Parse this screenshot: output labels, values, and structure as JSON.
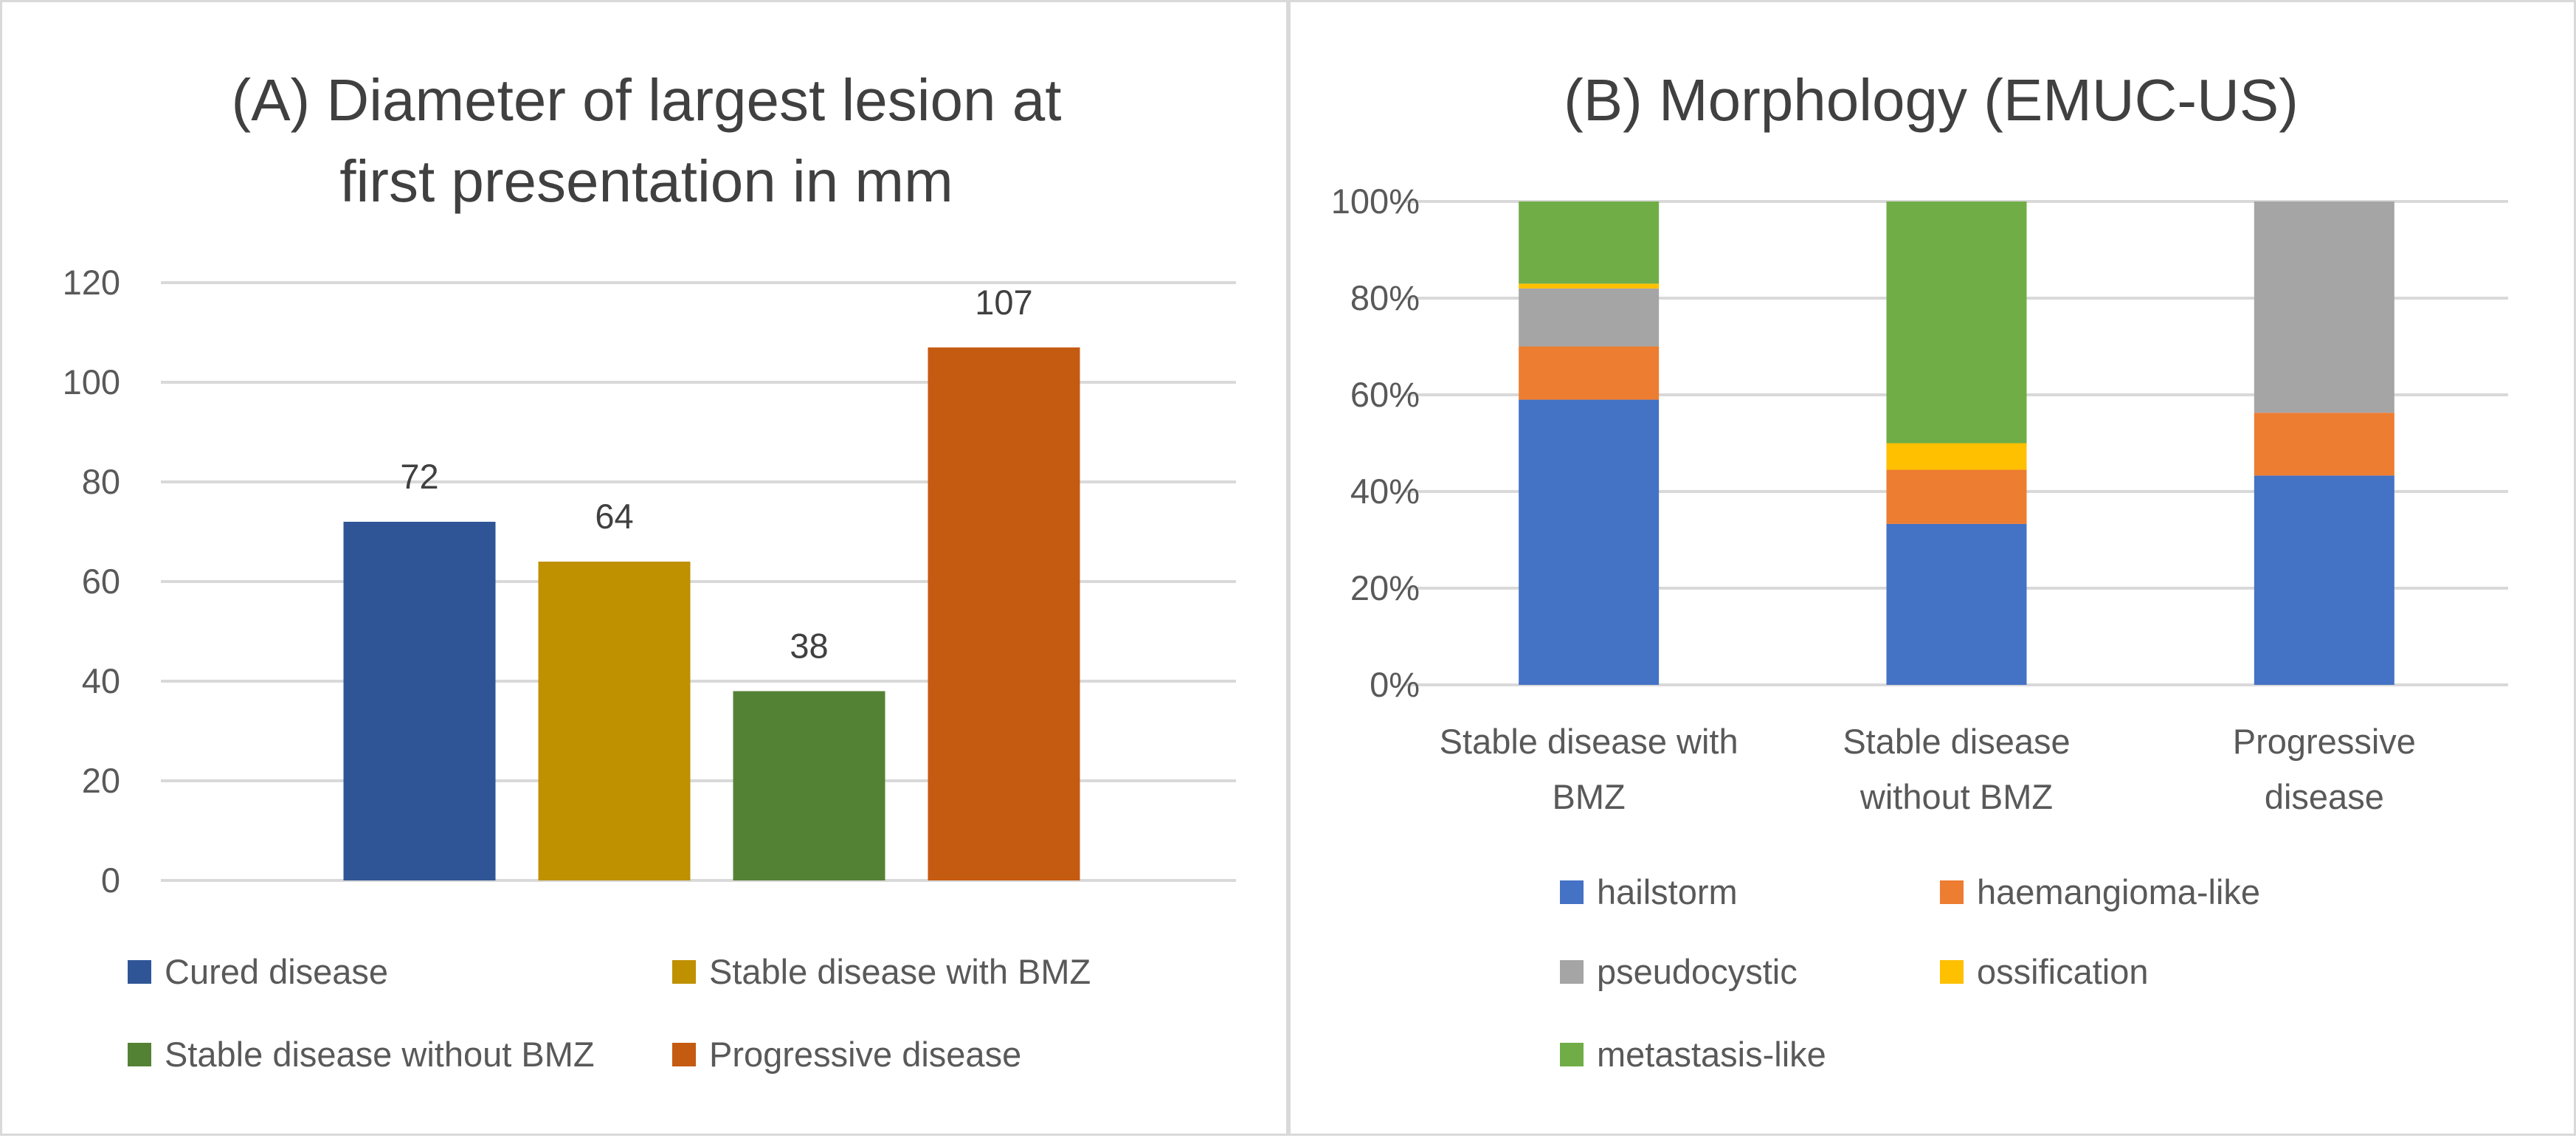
{
  "chart_data": [
    {
      "id": "a",
      "type": "bar",
      "title_lines": [
        "(A) Diameter of largest lesion at",
        "first presentation in mm"
      ],
      "categories": [
        "Cured disease",
        "Stable disease with BMZ",
        "Stable disease without BMZ",
        "Progressive disease"
      ],
      "values": [
        72,
        64,
        38,
        107
      ],
      "data_labels": [
        "72",
        "64",
        "38",
        "107"
      ],
      "colors": [
        "#2f5597",
        "#bf9000",
        "#548235",
        "#c55a11"
      ],
      "ylim": [
        0,
        120
      ],
      "yticks": [
        "0",
        "20",
        "40",
        "60",
        "80",
        "100",
        "120"
      ],
      "grid": true,
      "legend_position": "bottom",
      "legend": [
        "Cured disease",
        "Stable disease with BMZ",
        "Stable disease without BMZ",
        "Progressive disease"
      ]
    },
    {
      "id": "b",
      "type": "bar",
      "stacked": true,
      "percent": true,
      "title_lines": [
        "(B) Morphology (EMUC-US)"
      ],
      "categories": [
        [
          "Stable disease with",
          "BMZ"
        ],
        [
          "Stable disease",
          "without BMZ"
        ],
        [
          "Progressive",
          "disease"
        ]
      ],
      "series": [
        {
          "name": "hailstorm",
          "color": "#4472c4",
          "values": [
            59,
            33.3,
            43.3
          ]
        },
        {
          "name": "haemangioma-like",
          "color": "#ed7d31",
          "values": [
            11,
            11.2,
            13
          ]
        },
        {
          "name": "pseudocystic",
          "color": "#a5a5a5",
          "values": [
            12,
            0,
            43.7
          ]
        },
        {
          "name": "ossification",
          "color": "#ffc000",
          "values": [
            1,
            5.5,
            0
          ]
        },
        {
          "name": "metastasis-like",
          "color": "#70ad47",
          "values": [
            17,
            50,
            0
          ]
        }
      ],
      "ylim": [
        0,
        100
      ],
      "yticks": [
        "0%",
        "20%",
        "40%",
        "60%",
        "80%",
        "100%"
      ],
      "grid": true,
      "legend_position": "bottom"
    }
  ]
}
